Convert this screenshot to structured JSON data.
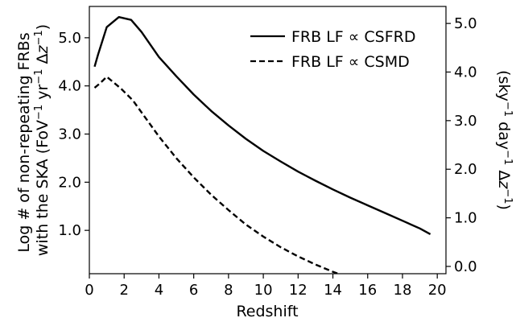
{
  "chart_data": {
    "type": "line",
    "xlabel": "Redshift",
    "ylabel_left": [
      "Log # of non-repeating FRBs",
      "with the SKA (FoV",
      "−1",
      " yr",
      "−1",
      " Δ",
      "z",
      "−1",
      ")"
    ],
    "ylabel_right": [
      "(sky",
      "−1",
      " day",
      "−1",
      " Δ",
      "z",
      "−1",
      ")"
    ],
    "xlim": [
      0,
      20.5
    ],
    "ylim_left": [
      0.1,
      5.65
    ],
    "ylim_right": [
      -0.15,
      5.35
    ],
    "xticks": [
      0,
      2,
      4,
      6,
      8,
      10,
      12,
      14,
      16,
      18,
      20
    ],
    "xtick_labels": [
      "0",
      "2",
      "4",
      "6",
      "8",
      "10",
      "12",
      "14",
      "16",
      "18",
      "20"
    ],
    "yticks_left": [
      1.0,
      2.0,
      3.0,
      4.0,
      5.0
    ],
    "ytick_labels_left": [
      "1.0",
      "2.0",
      "3.0",
      "4.0",
      "5.0"
    ],
    "yticks_right": [
      0.0,
      1.0,
      2.0,
      3.0,
      4.0,
      5.0
    ],
    "ytick_labels_right": [
      "0.0",
      "1.0",
      "2.0",
      "3.0",
      "4.0",
      "5.0"
    ],
    "legend_position": "top-right",
    "series": [
      {
        "name": "FRB LF ∝ CSFRD",
        "style": "solid",
        "color": "#000000",
        "axis": "left",
        "x": [
          0.3,
          0.5,
          1.0,
          1.7,
          2.4,
          3.0,
          4.0,
          5.0,
          6.0,
          7.0,
          8.0,
          9.0,
          10.0,
          11.0,
          12.0,
          13.0,
          14.0,
          15.0,
          16.0,
          17.0,
          18.0,
          19.0,
          19.6
        ],
        "values": [
          4.4,
          4.65,
          5.22,
          5.43,
          5.37,
          5.12,
          4.6,
          4.2,
          3.82,
          3.48,
          3.18,
          2.9,
          2.65,
          2.43,
          2.22,
          2.03,
          1.85,
          1.68,
          1.52,
          1.36,
          1.2,
          1.04,
          0.92
        ]
      },
      {
        "name": "FRB LF ∝ CSMD",
        "style": "dashed",
        "color": "#000000",
        "axis": "left",
        "x": [
          0.3,
          0.6,
          1.0,
          1.8,
          2.5,
          3.0,
          4.0,
          5.0,
          6.0,
          7.0,
          8.0,
          9.0,
          10.0,
          11.0,
          12.0,
          13.0,
          14.0,
          15.0,
          16.0,
          16.2
        ],
        "values": [
          3.96,
          4.05,
          4.19,
          3.95,
          3.7,
          3.45,
          2.95,
          2.5,
          2.1,
          1.74,
          1.42,
          1.12,
          0.87,
          0.65,
          0.46,
          0.29,
          0.14,
          0.01,
          -0.12,
          -0.15
        ]
      }
    ]
  }
}
